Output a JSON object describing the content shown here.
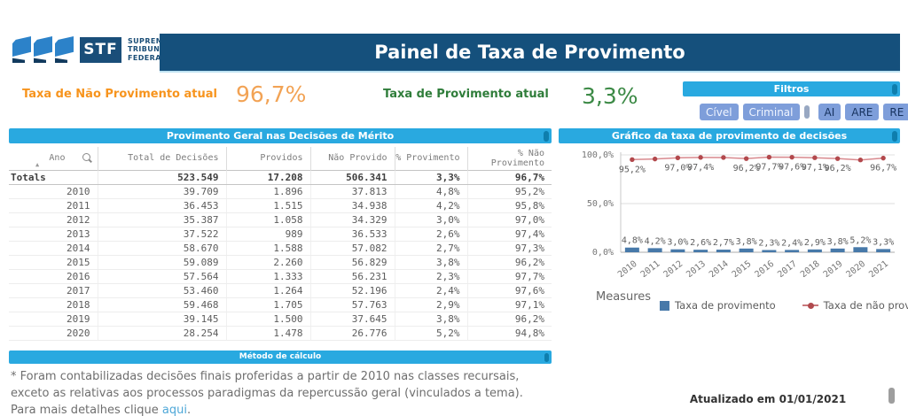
{
  "header": {
    "logo": {
      "stf": "STF",
      "org_lines": [
        "SUPREMO",
        "TRIBUNAL",
        "FEDERAL"
      ]
    },
    "title": "Painel de Taxa de Provimento",
    "banner_color": "#15507C"
  },
  "kpis": {
    "nao_provimento": {
      "label": "Taxa de Não Provimento atual",
      "value": "96,7%",
      "color": "#F7941D"
    },
    "provimento": {
      "label": "Taxa de Provimento atual",
      "value": "3,3%",
      "color": "#3C8A46"
    }
  },
  "filters": {
    "title": "Filtros",
    "group1": [
      "Cível",
      "Criminal"
    ],
    "group2": [
      "AI",
      "ARE",
      "RE"
    ],
    "button_color": "#7E9EDA",
    "bar_color": "#29A9E0"
  },
  "table": {
    "title": "Provimento Geral nas Decisões de Mérito",
    "columns": [
      "Ano",
      "Total de Decisões",
      "Providos",
      "Não Provido",
      "% Provimento",
      "% Não Provimento"
    ],
    "totals": {
      "label": "Totals",
      "cells": [
        "523.549",
        "17.208",
        "506.341",
        "3,3%",
        "96,7%"
      ]
    },
    "rows": [
      [
        "2010",
        "39.709",
        "1.896",
        "37.813",
        "4,8%",
        "95,2%"
      ],
      [
        "2011",
        "36.453",
        "1.515",
        "34.938",
        "4,2%",
        "95,8%"
      ],
      [
        "2012",
        "35.387",
        "1.058",
        "34.329",
        "3,0%",
        "97,0%"
      ],
      [
        "2013",
        "37.522",
        "989",
        "36.533",
        "2,6%",
        "97,4%"
      ],
      [
        "2014",
        "58.670",
        "1.588",
        "57.082",
        "2,7%",
        "97,3%"
      ],
      [
        "2015",
        "59.089",
        "2.260",
        "56.829",
        "3,8%",
        "96,2%"
      ],
      [
        "2016",
        "57.564",
        "1.333",
        "56.231",
        "2,3%",
        "97,7%"
      ],
      [
        "2017",
        "53.460",
        "1.264",
        "52.196",
        "2,4%",
        "97,6%"
      ],
      [
        "2018",
        "59.468",
        "1.705",
        "57.763",
        "2,9%",
        "97,1%"
      ],
      [
        "2019",
        "39.145",
        "1.500",
        "37.645",
        "3,8%",
        "96,2%"
      ],
      [
        "2020",
        "28.254",
        "1.478",
        "26.776",
        "5,2%",
        "94,8%"
      ]
    ]
  },
  "calc_bar": {
    "title": "Método de cálculo"
  },
  "footnote": {
    "text_before_link": "* Foram contabilizadas decisões finais proferidas a partir de 2010 nas classes recursais, exceto as relativas aos processos paradigmas da repercussão geral (vinculados a tema). Para mais detalhes clique ",
    "link": "aqui",
    "text_after_link": "."
  },
  "chart": {
    "title": "Gráfico da taxa de provimento de decisões"
  },
  "chart_data": {
    "type": "bar",
    "subtype": "combo bar+line",
    "title": "Gráfico da taxa de provimento de decisões",
    "categories": [
      "2010",
      "2011",
      "2012",
      "2013",
      "2014",
      "2015",
      "2016",
      "2017",
      "2018",
      "2019",
      "2020",
      "2021"
    ],
    "series": [
      {
        "name": "Taxa de provimento",
        "type": "bar",
        "values": [
          4.8,
          4.2,
          3.0,
          2.6,
          2.7,
          3.8,
          2.3,
          2.4,
          2.9,
          3.8,
          5.2,
          3.3
        ],
        "labels": [
          "4,8%",
          "4,2%",
          "3,0%",
          "2,6%",
          "2,7%",
          "3,8%",
          "2,3%",
          "2,4%",
          "2,9%",
          "3,8%",
          "5,2%",
          "3,3%"
        ],
        "color": "#4779A9"
      },
      {
        "name": "Taxa de não provimento",
        "type": "line",
        "values": [
          95.2,
          95.8,
          97.0,
          97.4,
          97.3,
          96.2,
          97.7,
          97.6,
          97.1,
          96.2,
          94.8,
          96.7
        ],
        "labels": [
          "95,2%",
          null,
          "97,0%",
          "97,4%",
          null,
          "96,2%",
          "97,7%",
          "97,6%",
          "97,1%",
          "96,2%",
          null,
          "96,7%"
        ],
        "color": "#D8898E",
        "marker_color": "#B2484C"
      }
    ],
    "ylim": [
      0,
      100
    ],
    "yticks": [
      "0,0%",
      "50,0%",
      "100,0%"
    ],
    "ytick_values": [
      0,
      50,
      100
    ],
    "grid": true,
    "legend_title": "Measures",
    "legend_position": "bottom"
  },
  "footer": {
    "updated": "Atualizado em 01/01/2021"
  }
}
